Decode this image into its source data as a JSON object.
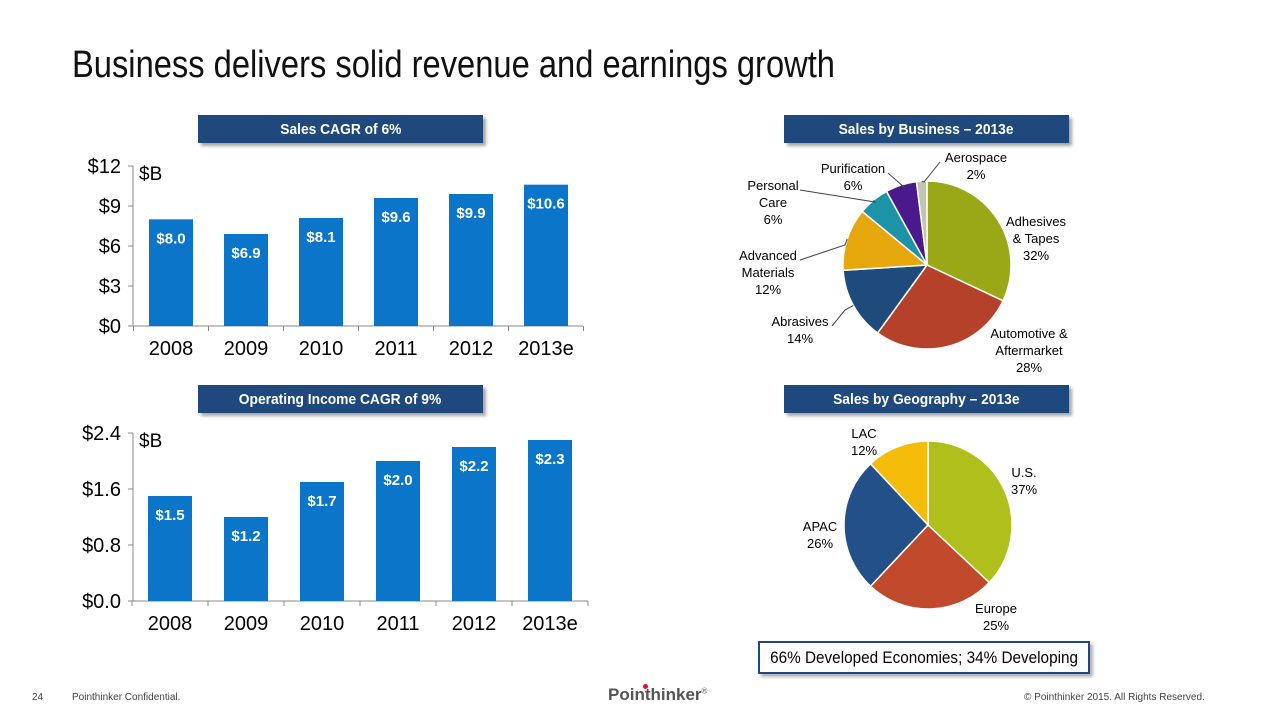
{
  "title": "Business delivers solid revenue and earnings growth",
  "banners": {
    "sales": "Sales CAGR of 6%",
    "op_income": "Operating Income CAGR of 9%",
    "by_business": "Sales by Business – 2013e",
    "by_geography": "Sales by Geography – 2013e"
  },
  "callout": "66% Developed Economies; 34% Developing",
  "footer": {
    "page": "24",
    "confidential": "Pointhinker Confidential.",
    "logo": "Pointhinker",
    "logo_mark": "®",
    "copyright": "© Pointhinker  2015. All Rights Reserved."
  },
  "colors": {
    "bar": "#0b75c9",
    "banner": "#1f497d"
  },
  "chart_data": [
    {
      "type": "bar",
      "title": "Sales CAGR of 6%",
      "unit": "$B",
      "categories": [
        "2008",
        "2009",
        "2010",
        "2011",
        "2012",
        "2013e"
      ],
      "values": [
        8.0,
        6.9,
        8.1,
        9.6,
        9.9,
        10.6
      ],
      "value_labels": [
        "$8.0",
        "$6.9",
        "$8.1",
        "$9.6",
        "$9.9",
        "$10.6"
      ],
      "yticks": [
        "$0",
        "$3",
        "$6",
        "$9",
        "$12"
      ],
      "ylim": [
        0,
        12
      ],
      "grid": false
    },
    {
      "type": "bar",
      "title": "Operating Income CAGR of 9%",
      "unit": "$B",
      "categories": [
        "2008",
        "2009",
        "2010",
        "2011",
        "2012",
        "2013e"
      ],
      "values": [
        1.5,
        1.2,
        1.7,
        2.0,
        2.2,
        2.3
      ],
      "value_labels": [
        "$1.5",
        "$1.2",
        "$1.7",
        "$2.0",
        "$2.2",
        "$2.3"
      ],
      "yticks": [
        "$0.0",
        "$0.8",
        "$1.6",
        "$2.4"
      ],
      "ylim": [
        0,
        2.4
      ],
      "grid": false
    },
    {
      "type": "pie",
      "title": "Sales by Business – 2013e",
      "slices": [
        {
          "name": "Adhesives & Tapes",
          "value": 32,
          "color": "#9aa818",
          "label_lines": [
            "Adhesives",
            "& Tapes",
            "32%"
          ]
        },
        {
          "name": "Automotive & Aftermarket",
          "value": 28,
          "color": "#b5412a",
          "label_lines": [
            "Automotive &",
            "Aftermarket",
            "28%"
          ]
        },
        {
          "name": "Abrasives",
          "value": 14,
          "color": "#1f4a7c",
          "label_lines": [
            "Abrasives",
            "14%"
          ]
        },
        {
          "name": "Advanced Materials",
          "value": 12,
          "color": "#e6a70c",
          "label_lines": [
            "Advanced",
            "Materials",
            "12%"
          ]
        },
        {
          "name": "Personal Care",
          "value": 6,
          "color": "#1d93a8",
          "label_lines": [
            "Personal",
            "Care",
            "6%"
          ]
        },
        {
          "name": "Purification",
          "value": 6,
          "color": "#4a1a8c",
          "label_lines": [
            "Purification",
            "6%"
          ]
        },
        {
          "name": "Aerospace",
          "value": 2,
          "color": "#c2c6b0",
          "label_lines": [
            "Aerospace",
            "2%"
          ]
        }
      ]
    },
    {
      "type": "pie",
      "title": "Sales by Geography – 2013e",
      "slices": [
        {
          "name": "U.S.",
          "value": 37,
          "color": "#b0bf1c",
          "label_lines": [
            "U.S.",
            "37%"
          ]
        },
        {
          "name": "Europe",
          "value": 25,
          "color": "#c04a2b",
          "label_lines": [
            "Europe",
            "25%"
          ]
        },
        {
          "name": "APAC",
          "value": 26,
          "color": "#24508a",
          "label_lines": [
            "APAC",
            "26%"
          ]
        },
        {
          "name": "LAC",
          "value": 12,
          "color": "#f5bd0a",
          "label_lines": [
            "LAC",
            "12%"
          ]
        }
      ]
    }
  ]
}
